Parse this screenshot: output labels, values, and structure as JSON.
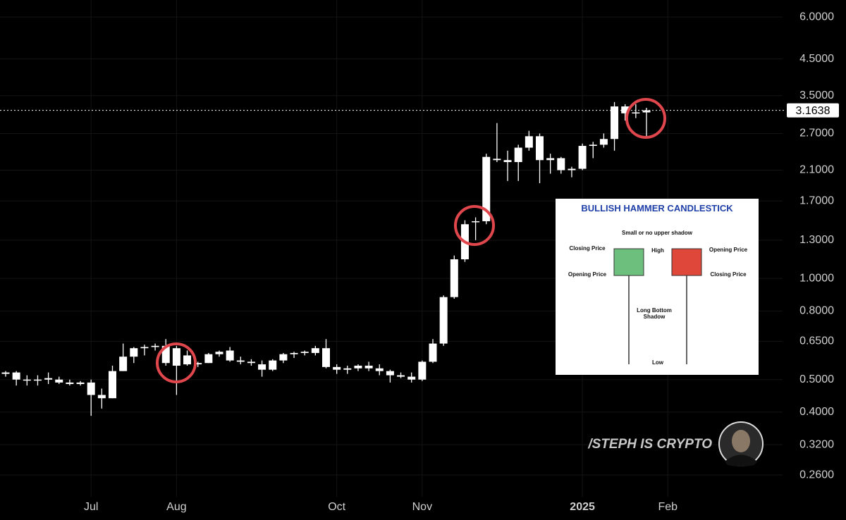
{
  "chart_data": {
    "type": "candlestick",
    "color": "#ffffff",
    "log_scale": true,
    "grid": true,
    "categories": [
      null,
      null,
      null,
      null,
      null,
      null,
      null,
      null,
      "Jul",
      null,
      null,
      null,
      null,
      null,
      null,
      null,
      "Aug",
      null,
      null,
      null,
      null,
      null,
      null,
      null,
      null,
      null,
      null,
      null,
      null,
      null,
      null,
      "Oct",
      null,
      null,
      null,
      null,
      null,
      null,
      null,
      "Nov",
      null,
      null,
      null,
      null,
      null,
      null,
      null,
      null,
      null,
      null,
      null,
      null,
      null,
      null,
      "2025",
      null,
      null,
      null,
      null,
      null,
      null,
      null,
      "Feb"
    ],
    "open": [
      0.52,
      0.525,
      0.5,
      0.5,
      0.5,
      0.5,
      0.49,
      0.485,
      0.49,
      0.45,
      0.44,
      0.53,
      0.585,
      0.62,
      0.625,
      0.63,
      0.62,
      0.59,
      0.555,
      0.56,
      0.595,
      0.61,
      0.57,
      0.565,
      0.555,
      0.535,
      0.57,
      0.595,
      0.6,
      0.6,
      0.62,
      0.545,
      0.535,
      0.54,
      0.55,
      0.54,
      0.53,
      0.515,
      0.51,
      0.5,
      0.565,
      0.64,
      0.88,
      1.14,
      1.47,
      1.48,
      2.27,
      2.25,
      2.22,
      2.45,
      2.65,
      2.25,
      2.28,
      2.1,
      2.12,
      2.48,
      2.5,
      2.6,
      3.25,
      3.1,
      3.12,
      null,
      null
    ],
    "high": [
      0.53,
      0.53,
      0.515,
      0.515,
      0.525,
      0.51,
      0.5,
      0.495,
      0.5,
      0.47,
      0.55,
      0.64,
      0.625,
      0.635,
      0.64,
      0.66,
      0.63,
      0.61,
      0.565,
      0.6,
      0.61,
      0.625,
      0.585,
      0.575,
      0.57,
      0.575,
      0.6,
      0.605,
      0.61,
      0.63,
      0.66,
      0.555,
      0.55,
      0.555,
      0.565,
      0.555,
      0.535,
      0.525,
      0.525,
      0.57,
      0.66,
      0.89,
      1.17,
      1.49,
      1.52,
      2.35,
      2.9,
      2.4,
      2.5,
      2.75,
      2.7,
      2.35,
      2.3,
      2.15,
      2.52,
      2.55,
      2.7,
      3.35,
      3.3,
      3.3,
      3.22,
      null,
      null
    ],
    "low": [
      0.51,
      0.48,
      0.48,
      0.48,
      0.485,
      0.485,
      0.48,
      0.48,
      0.39,
      0.41,
      0.44,
      0.53,
      0.56,
      0.59,
      0.61,
      0.55,
      0.45,
      0.55,
      0.545,
      0.56,
      0.585,
      0.565,
      0.555,
      0.55,
      0.51,
      0.53,
      0.56,
      0.58,
      0.59,
      0.59,
      0.54,
      0.52,
      0.52,
      0.53,
      0.53,
      0.515,
      0.49,
      0.505,
      0.49,
      0.495,
      0.56,
      0.63,
      0.87,
      1.12,
      1.3,
      1.45,
      2.22,
      1.95,
      1.95,
      2.4,
      1.92,
      2.05,
      2.05,
      2.0,
      2.1,
      2.28,
      2.45,
      2.4,
      2.95,
      3.0,
      2.65,
      null,
      null
    ],
    "close": [
      0.525,
      0.5,
      0.5,
      0.5,
      0.505,
      0.49,
      0.485,
      0.49,
      0.45,
      0.44,
      0.53,
      0.585,
      0.62,
      0.625,
      0.63,
      0.56,
      0.55,
      0.555,
      0.56,
      0.595,
      0.605,
      0.57,
      0.565,
      0.56,
      0.535,
      0.57,
      0.595,
      0.6,
      0.605,
      0.62,
      0.545,
      0.535,
      0.54,
      0.55,
      0.54,
      0.53,
      0.515,
      0.51,
      0.5,
      0.565,
      0.64,
      0.88,
      1.14,
      1.45,
      1.48,
      2.3,
      2.25,
      2.22,
      2.45,
      2.65,
      2.25,
      2.28,
      2.1,
      2.12,
      2.48,
      2.5,
      2.6,
      3.25,
      3.1,
      3.12,
      3.1638,
      null,
      null
    ],
    "ylim": [
      0.224,
      6.74
    ],
    "yticks": [
      {
        "value": 6,
        "label": "6.0000"
      },
      {
        "value": 4.5,
        "label": "4.5000"
      },
      {
        "value": 3.5,
        "label": "3.5000"
      },
      {
        "value": 2.7,
        "label": "2.7000"
      },
      {
        "value": 2.1,
        "label": "2.1000"
      },
      {
        "value": 1.7,
        "label": "1.7000"
      },
      {
        "value": 1.3,
        "label": "1.3000"
      },
      {
        "value": 1,
        "label": "1.0000"
      },
      {
        "value": 0.8,
        "label": "0.8000"
      },
      {
        "value": 0.65,
        "label": "0.6500"
      },
      {
        "value": 0.5,
        "label": "0.5000"
      },
      {
        "value": 0.4,
        "label": "0.4000"
      },
      {
        "value": 0.32,
        "label": "0.3200"
      },
      {
        "value": 0.26,
        "label": "0.2600"
      }
    ],
    "last_price": 3.1638,
    "watermark": "/STEPH IS CRYPTO",
    "inset": {
      "title": "BULLISH HAMMER CANDLESTICK",
      "upper_note": "Small or no upper shadow",
      "bull_close": "Closing Price",
      "bull_open": "Opening Price",
      "high": "High",
      "bear_open": "Opening Price",
      "bear_close": "Closing Price",
      "long_shadow": "Long Bottom Shadow",
      "low": "Low"
    }
  }
}
